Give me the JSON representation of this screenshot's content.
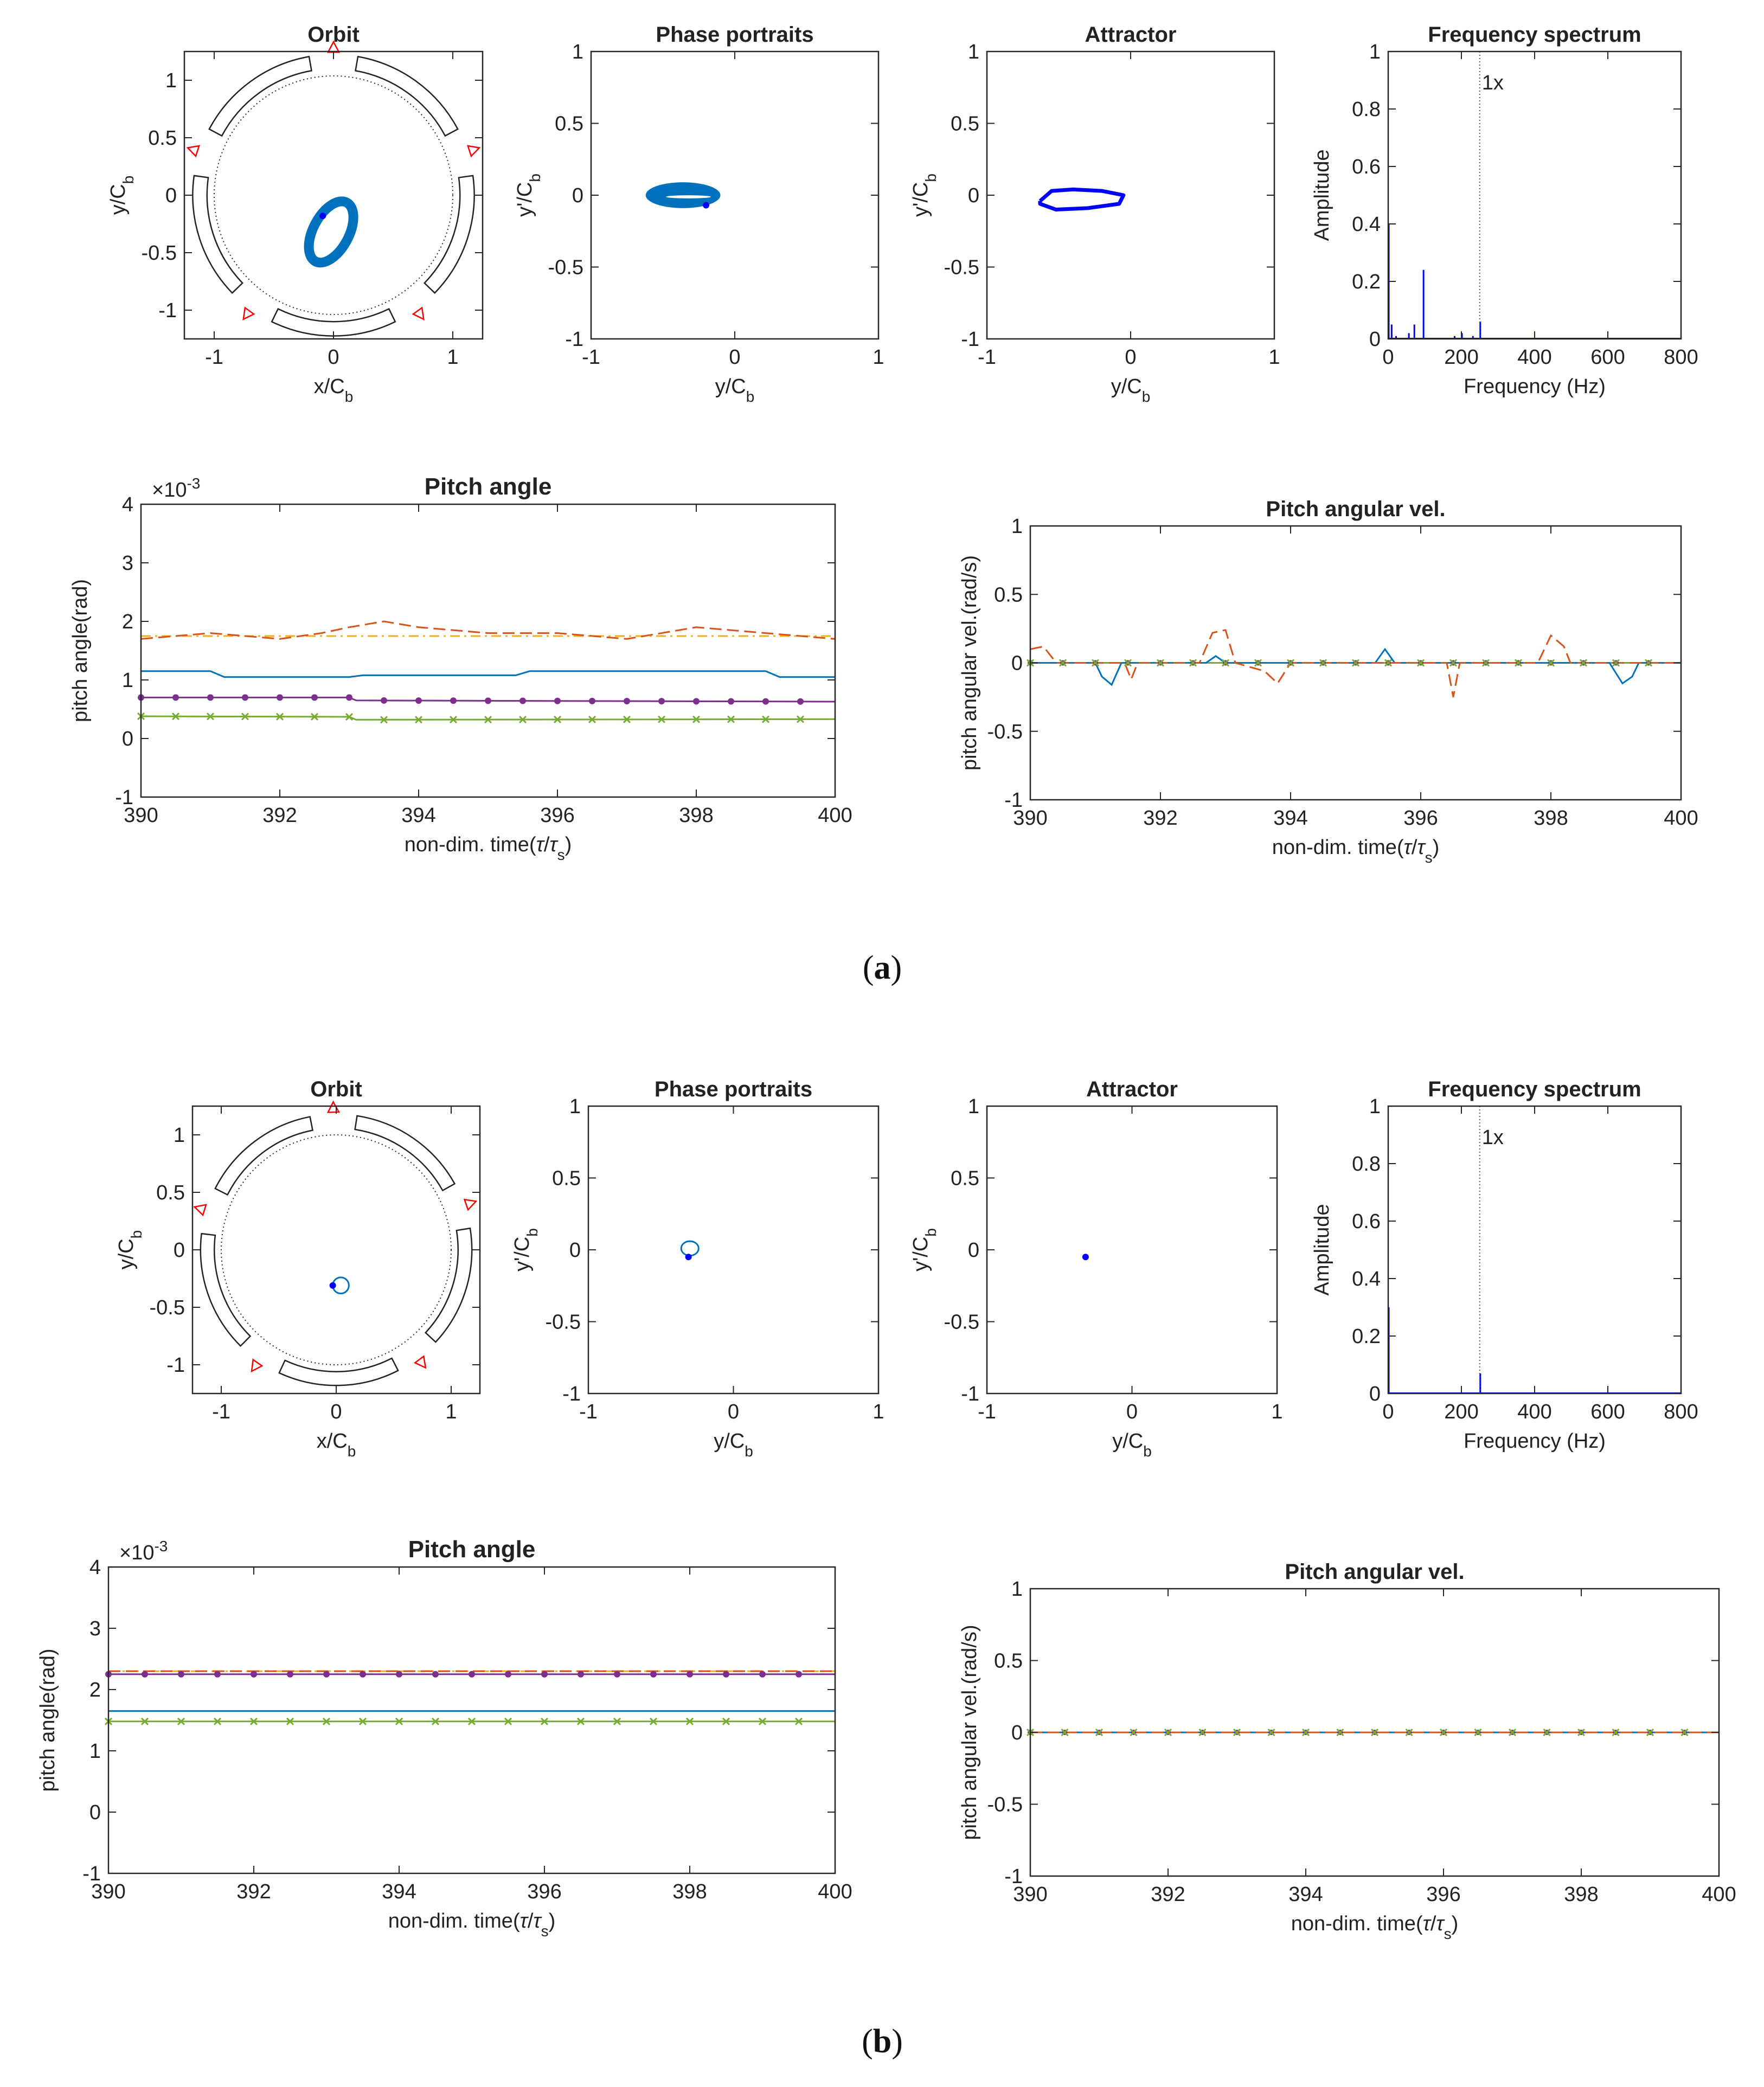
{
  "panels": [
    {
      "caption": {
        "open": "(",
        "letter": "a",
        "close": ")"
      },
      "charts": {
        "orbit": {
          "title": "Orbit",
          "xlabel": "x/C",
          "ylabel": "y/C",
          "sub": "b",
          "xticks": [
            "-1",
            "0",
            "1"
          ],
          "yticks": [
            "1",
            "0.5",
            "0",
            "-0.5",
            "-1"
          ]
        },
        "phase": {
          "title": "Phase portraits",
          "xlabel": "y/C",
          "ylabel": "y'/C",
          "sub": "b",
          "xticks": [
            "-1",
            "0",
            "1"
          ],
          "yticks": [
            "1",
            "0.5",
            "0",
            "-0.5",
            "-1"
          ]
        },
        "attractor": {
          "title": "Attractor",
          "xlabel": "y/C",
          "ylabel": "y'/C",
          "sub": "b",
          "xticks": [
            "-1",
            "0",
            "1"
          ],
          "yticks": [
            "1",
            "0.5",
            "0",
            "-0.5",
            "-1"
          ]
        },
        "spectrum": {
          "title": "Frequency spectrum",
          "xlabel": "Frequency (Hz)",
          "ylabel": "Amplitude",
          "marker": "1x",
          "xticks": [
            "0",
            "200",
            "400",
            "600",
            "800"
          ],
          "yticks": [
            "1",
            "0.8",
            "0.6",
            "0.4",
            "0.2",
            "0"
          ]
        },
        "pitch": {
          "title": "Pitch angle",
          "xlabel_pre": "non-dim. time(",
          "xlabel_tau": "τ",
          "xlabel_sub": "s",
          "xlabel_post": ")",
          "ylabel": "pitch angle(rad)",
          "exp_base": "×10",
          "exp_power": "-3",
          "xticks": [
            "390",
            "392",
            "394",
            "396",
            "398",
            "400"
          ],
          "yticks": [
            "4",
            "3",
            "2",
            "1",
            "0",
            "-1"
          ]
        },
        "vel": {
          "title": "Pitch angular vel.",
          "xlabel_pre": "non-dim. time(",
          "xlabel_tau": "τ",
          "xlabel_sub": "s",
          "xlabel_post": ")",
          "ylabel": "pitch angular vel.(rad/s)",
          "xticks": [
            "390",
            "392",
            "394",
            "396",
            "398",
            "400"
          ],
          "yticks": [
            "1",
            "0.5",
            "0",
            "-0.5",
            "-1"
          ]
        }
      }
    },
    {
      "caption": {
        "open": "(",
        "letter": "b",
        "close": ")"
      },
      "charts": {
        "orbit": {
          "title": "Orbit",
          "xlabel": "x/C",
          "ylabel": "y/C",
          "sub": "b",
          "xticks": [
            "-1",
            "0",
            "1"
          ],
          "yticks": [
            "1",
            "0.5",
            "0",
            "-0.5",
            "-1"
          ]
        },
        "phase": {
          "title": "Phase portraits",
          "xlabel": "y/C",
          "ylabel": "y'/C",
          "sub": "b",
          "xticks": [
            "-1",
            "0",
            "1"
          ],
          "yticks": [
            "1",
            "0.5",
            "0",
            "-0.5",
            "-1"
          ]
        },
        "attractor": {
          "title": "Attractor",
          "xlabel": "y/C",
          "ylabel": "y'/C",
          "sub": "b",
          "xticks": [
            "-1",
            "0",
            "1"
          ],
          "yticks": [
            "1",
            "0.5",
            "0",
            "-0.5",
            "-1"
          ]
        },
        "spectrum": {
          "title": "Frequency spectrum",
          "xlabel": "Frequency (Hz)",
          "ylabel": "Amplitude",
          "marker": "1x",
          "xticks": [
            "0",
            "200",
            "400",
            "600",
            "800"
          ],
          "yticks": [
            "1",
            "0.8",
            "0.6",
            "0.4",
            "0.2",
            "0"
          ]
        },
        "pitch": {
          "title": "Pitch angle",
          "xlabel_pre": "non-dim. time(",
          "xlabel_tau": "τ",
          "xlabel_sub": "s",
          "xlabel_post": ")",
          "ylabel": "pitch angle(rad)",
          "exp_base": "×10",
          "exp_power": "-3",
          "xticks": [
            "390",
            "392",
            "394",
            "396",
            "398",
            "400"
          ],
          "yticks": [
            "4",
            "3",
            "2",
            "1",
            "0",
            "-1"
          ]
        },
        "vel": {
          "title": "Pitch angular vel.",
          "xlabel_pre": "non-dim. time(",
          "xlabel_tau": "τ",
          "xlabel_sub": "s",
          "xlabel_post": ")",
          "ylabel": "pitch angular vel.(rad/s)",
          "xticks": [
            "390",
            "392",
            "394",
            "396",
            "398",
            "400"
          ],
          "yticks": [
            "1",
            "0.5",
            "0",
            "-0.5",
            "-1"
          ]
        }
      }
    }
  ],
  "colors": {
    "blue": "#0072BD",
    "orange": "#D95319",
    "yellow": "#EDB120",
    "purple": "#7E2F8E",
    "green": "#77AC30",
    "dark_blue": "#0000FF",
    "pad_marker": "#FF0000"
  },
  "chart_data": [
    {
      "panel": "a",
      "chart": "Orbit",
      "type": "scatter",
      "xlim": [
        -1.25,
        1.25
      ],
      "ylim": [
        -1.25,
        1.25
      ],
      "orbit": {
        "center": [
          -0.02,
          -0.32
        ],
        "rx": 0.15,
        "ry": 0.29,
        "tilt_deg": 28
      },
      "current_point": [
        -0.09,
        -0.18
      ],
      "clearance_circle_radius": 1.0,
      "pads": 5
    },
    {
      "panel": "a",
      "chart": "Phase portraits",
      "type": "scatter",
      "xlim": [
        -1,
        1
      ],
      "ylim": [
        -1,
        1
      ],
      "orbit": {
        "center": [
          -0.36,
          0.0
        ],
        "rx": 0.26,
        "ry": 0.09
      },
      "current_point": [
        -0.2,
        -0.07
      ]
    },
    {
      "panel": "a",
      "chart": "Attractor",
      "type": "line",
      "xlim": [
        -1,
        1
      ],
      "ylim": [
        -1,
        1
      ],
      "points": [
        [
          -0.63,
          -0.04
        ],
        [
          -0.55,
          0.03
        ],
        [
          -0.4,
          0.04
        ],
        [
          -0.2,
          0.03
        ],
        [
          -0.05,
          0.0
        ],
        [
          -0.08,
          -0.06
        ],
        [
          -0.3,
          -0.09
        ],
        [
          -0.52,
          -0.1
        ],
        [
          -0.63,
          -0.06
        ]
      ]
    },
    {
      "panel": "a",
      "chart": "Frequency spectrum",
      "type": "line",
      "xlim": [
        0,
        800
      ],
      "ylim": [
        0,
        1
      ],
      "peaks": [
        [
          0,
          0.4
        ],
        [
          8,
          0.05
        ],
        [
          20,
          0.01
        ],
        [
          55,
          0.02
        ],
        [
          70,
          0.05
        ],
        [
          95,
          0.24
        ],
        [
          180,
          0.01
        ],
        [
          200,
          0.02
        ],
        [
          230,
          0.01
        ],
        [
          250,
          0.06
        ]
      ],
      "marker_x": 250
    },
    {
      "panel": "a",
      "chart": "Pitch angle",
      "type": "line",
      "xlim": [
        390,
        400
      ],
      "ylim": [
        -0.001,
        0.004
      ],
      "series": [
        {
          "points": [
            [
              390,
              0.00115
            ],
            [
              391,
              0.00115
            ],
            [
              391.2,
              0.00105
            ],
            [
              393,
              0.00105
            ],
            [
              393.2,
              0.00108
            ],
            [
              395.4,
              0.00108
            ],
            [
              395.6,
              0.00115
            ],
            [
              399,
              0.00115
            ],
            [
              399.2,
              0.00105
            ],
            [
              400,
              0.00105
            ]
          ]
        },
        {
          "points": [
            [
              390,
              0.0017
            ],
            [
              391,
              0.0018
            ],
            [
              392,
              0.0017
            ],
            [
              392.6,
              0.0018
            ],
            [
              393,
              0.0019
            ],
            [
              393.5,
              0.002
            ],
            [
              394,
              0.0019
            ],
            [
              395,
              0.0018
            ],
            [
              396,
              0.0018
            ],
            [
              397,
              0.0017
            ],
            [
              398,
              0.0019
            ],
            [
              399,
              0.0018
            ],
            [
              400,
              0.0017
            ]
          ]
        },
        {
          "points": [
            [
              390,
              0.00175
            ],
            [
              400,
              0.00175
            ]
          ]
        },
        {
          "points": [
            [
              390,
              0.0007
            ],
            [
              393,
              0.0007
            ],
            [
              393.1,
              0.00065
            ],
            [
              400,
              0.00063
            ]
          ]
        },
        {
          "points": [
            [
              390,
              0.00038
            ],
            [
              393,
              0.00037
            ],
            [
              393.1,
              0.00032
            ],
            [
              400,
              0.00033
            ]
          ]
        }
      ]
    },
    {
      "panel": "a",
      "chart": "Pitch angular vel.",
      "type": "line",
      "xlim": [
        390,
        400
      ],
      "ylim": [
        -1,
        1
      ],
      "series": [
        {
          "points": [
            [
              390,
              0.0
            ],
            [
              391,
              0.0
            ],
            [
              391.1,
              -0.1
            ],
            [
              391.25,
              -0.16
            ],
            [
              391.4,
              0.0
            ],
            [
              392.7,
              0.0
            ],
            [
              392.85,
              0.05
            ],
            [
              393,
              0.0
            ],
            [
              395.3,
              0.0
            ],
            [
              395.45,
              0.1
            ],
            [
              395.6,
              0.0
            ],
            [
              398.9,
              0.0
            ],
            [
              399.1,
              -0.15
            ],
            [
              399.25,
              -0.1
            ],
            [
              399.35,
              0.0
            ],
            [
              400,
              0.0
            ]
          ]
        },
        {
          "points": [
            [
              390,
              0.1
            ],
            [
              390.2,
              0.12
            ],
            [
              390.4,
              0.0
            ],
            [
              391.45,
              0.0
            ],
            [
              391.55,
              -0.12
            ],
            [
              391.65,
              0.0
            ],
            [
              392.6,
              0.0
            ],
            [
              392.8,
              0.22
            ],
            [
              393.0,
              0.24
            ],
            [
              393.15,
              0.0
            ],
            [
              393.6,
              -0.06
            ],
            [
              393.8,
              -0.15
            ],
            [
              394.0,
              0.0
            ],
            [
              396.4,
              0.0
            ],
            [
              396.5,
              -0.25
            ],
            [
              396.6,
              0.0
            ],
            [
              397.8,
              0.0
            ],
            [
              398.0,
              0.2
            ],
            [
              398.2,
              0.12
            ],
            [
              398.3,
              0.0
            ],
            [
              400,
              0.0
            ]
          ]
        },
        {
          "points": [
            [
              390,
              0.0
            ],
            [
              400,
              0.0
            ]
          ]
        },
        {
          "points": [
            [
              390,
              0.0
            ],
            [
              400,
              0.0
            ]
          ]
        },
        {
          "points": [
            [
              390,
              0.0
            ],
            [
              400,
              0.0
            ]
          ]
        }
      ]
    },
    {
      "panel": "b",
      "chart": "Orbit",
      "type": "scatter",
      "xlim": [
        -1.25,
        1.25
      ],
      "ylim": [
        -1.25,
        1.25
      ],
      "orbit": {
        "center": [
          0.04,
          -0.31
        ],
        "rx": 0.07,
        "ry": 0.07,
        "tilt_deg": 0
      },
      "current_point": [
        -0.03,
        -0.31
      ],
      "clearance_circle_radius": 1.0,
      "pads": 5
    },
    {
      "panel": "b",
      "chart": "Phase portraits",
      "type": "scatter",
      "xlim": [
        -1,
        1
      ],
      "ylim": [
        -1,
        1
      ],
      "orbit": {
        "center": [
          -0.3,
          0.01
        ],
        "rx": 0.06,
        "ry": 0.05
      },
      "current_point": [
        -0.31,
        -0.05
      ]
    },
    {
      "panel": "b",
      "chart": "Attractor",
      "type": "scatter",
      "xlim": [
        -1,
        1
      ],
      "ylim": [
        -1,
        1
      ],
      "points": [
        [
          -0.32,
          -0.05
        ]
      ]
    },
    {
      "panel": "b",
      "chart": "Frequency spectrum",
      "type": "line",
      "xlim": [
        0,
        800
      ],
      "ylim": [
        0,
        1
      ],
      "peaks": [
        [
          0,
          0.3
        ],
        [
          250,
          0.07
        ]
      ],
      "marker_x": 250
    },
    {
      "panel": "b",
      "chart": "Pitch angle",
      "type": "line",
      "xlim": [
        390,
        400
      ],
      "ylim": [
        -0.001,
        0.004
      ],
      "series": [
        {
          "points": [
            [
              390,
              0.00165
            ],
            [
              400,
              0.00165
            ]
          ]
        },
        {
          "points": [
            [
              390,
              0.0023
            ],
            [
              400,
              0.0023
            ]
          ]
        },
        {
          "points": [
            [
              390,
              0.0023
            ],
            [
              400,
              0.0023
            ]
          ]
        },
        {
          "points": [
            [
              390,
              0.00225
            ],
            [
              400,
              0.00225
            ]
          ]
        },
        {
          "points": [
            [
              390,
              0.00148
            ],
            [
              400,
              0.00148
            ]
          ]
        }
      ]
    },
    {
      "panel": "b",
      "chart": "Pitch angular vel.",
      "type": "line",
      "xlim": [
        390,
        400
      ],
      "ylim": [
        -1,
        1
      ],
      "series": [
        {
          "points": [
            [
              390,
              0.0
            ],
            [
              400,
              0.0
            ]
          ]
        },
        {
          "points": [
            [
              390,
              0.0
            ],
            [
              400,
              0.0
            ]
          ]
        },
        {
          "points": [
            [
              390,
              0.0
            ],
            [
              400,
              0.0
            ]
          ]
        },
        {
          "points": [
            [
              390,
              0.0
            ],
            [
              400,
              0.0
            ]
          ]
        },
        {
          "points": [
            [
              390,
              0.0
            ],
            [
              400,
              0.0
            ]
          ]
        }
      ]
    }
  ]
}
